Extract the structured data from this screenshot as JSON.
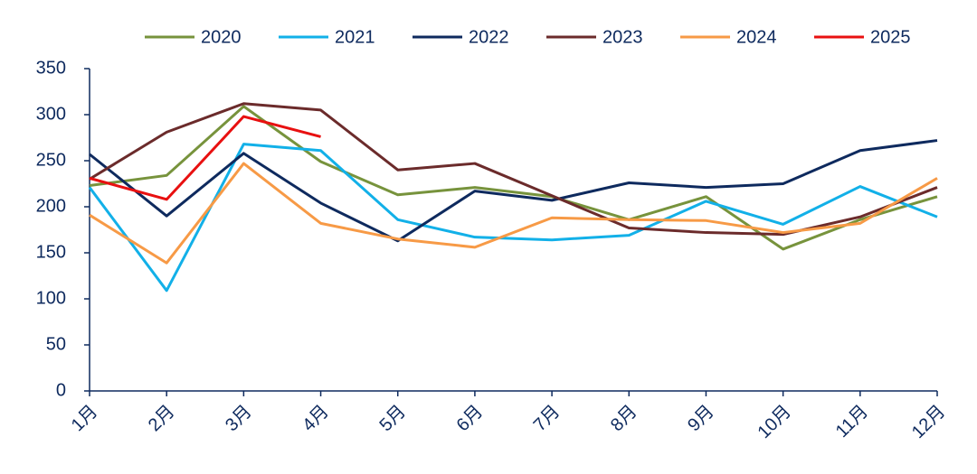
{
  "chart_data": {
    "type": "line",
    "categories": [
      "1月",
      "2月",
      "3月",
      "4月",
      "5月",
      "6月",
      "7月",
      "8月",
      "9月",
      "10月",
      "11月",
      "12月"
    ],
    "series": [
      {
        "name": "2020",
        "color": "#77933c",
        "values": [
          223,
          234,
          309,
          249,
          213,
          221,
          211,
          186,
          211,
          154,
          186,
          211
        ]
      },
      {
        "name": "2021",
        "color": "#12b0e8",
        "values": [
          221,
          109,
          268,
          261,
          186,
          167,
          164,
          169,
          206,
          181,
          222,
          189
        ]
      },
      {
        "name": "2022",
        "color": "#0e2a5e",
        "values": [
          257,
          190,
          258,
          204,
          163,
          217,
          207,
          226,
          221,
          225,
          261,
          272
        ]
      },
      {
        "name": "2023",
        "color": "#6b2b2b",
        "values": [
          230,
          281,
          312,
          305,
          240,
          247,
          212,
          177,
          172,
          170,
          189,
          221
        ]
      },
      {
        "name": "2024",
        "color": "#f79a46",
        "values": [
          191,
          139,
          247,
          182,
          165,
          156,
          188,
          186,
          185,
          172,
          182,
          231
        ]
      },
      {
        "name": "2025",
        "color": "#e81010",
        "values": [
          231,
          208,
          298,
          276,
          null,
          null,
          null,
          null,
          null,
          null,
          null,
          null
        ]
      }
    ],
    "ylim": [
      0,
      350
    ],
    "yticks": [
      0,
      50,
      100,
      150,
      200,
      250,
      300,
      350
    ],
    "legend": "top"
  }
}
